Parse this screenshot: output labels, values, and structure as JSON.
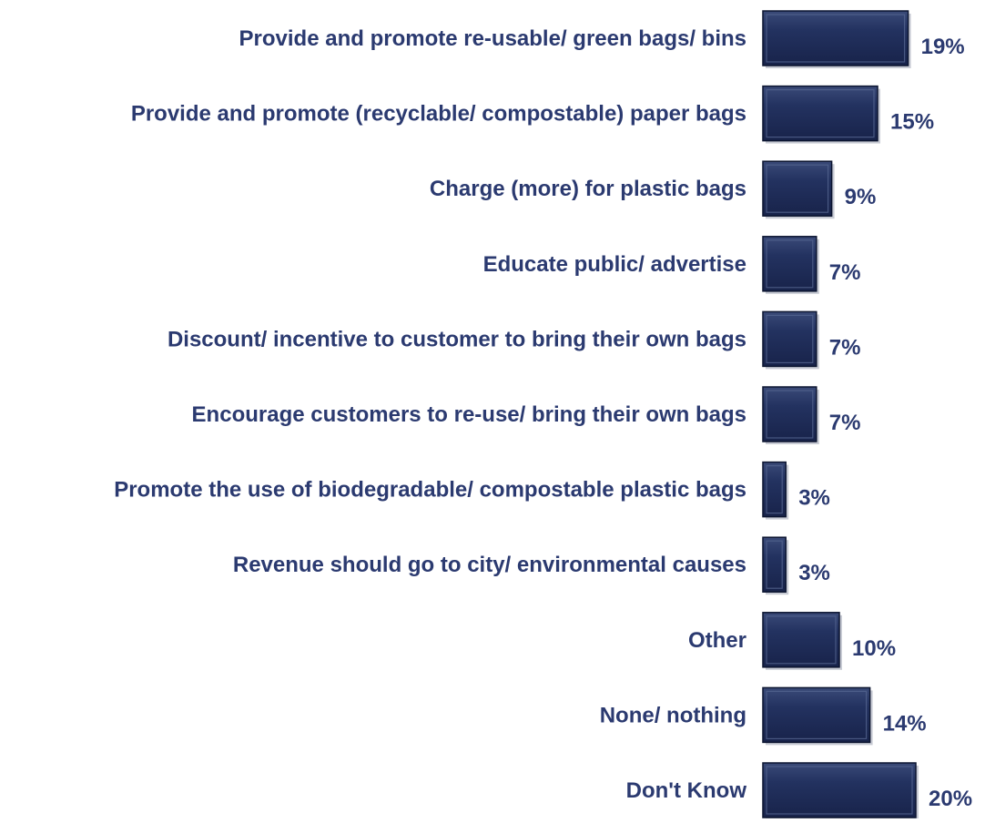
{
  "chart_data": {
    "type": "bar",
    "orientation": "horizontal",
    "title": "",
    "xlabel": "",
    "ylabel": "",
    "grid": false,
    "legend": "none",
    "value_suffix": "%",
    "xlim": [
      0,
      20
    ],
    "categories": [
      "Provide and promote re-usable/ green bags/ bins",
      "Provide and promote (recyclable/ compostable) paper bags",
      "Charge (more) for plastic bags",
      "Educate public/ advertise",
      "Discount/ incentive to customer to bring their own bags",
      "Encourage customers to re-use/ bring their own bags",
      "Promote the use of biodegradable/ compostable plastic bags",
      "Revenue should go to city/ environmental causes",
      "Other",
      "None/ nothing",
      "Don't Know"
    ],
    "values": [
      19,
      15,
      9,
      7,
      7,
      7,
      3,
      3,
      10,
      14,
      20
    ],
    "data_labels": [
      "19%",
      "15%",
      "9%",
      "7%",
      "7%",
      "7%",
      "3%",
      "3%",
      "10%",
      "14%",
      "20%"
    ],
    "colors": {
      "bar_fill": "#1f2d57",
      "bar_highlight": "#54648f",
      "bar_shadow": "#0c1530",
      "label_text": "#2b3a70"
    }
  }
}
